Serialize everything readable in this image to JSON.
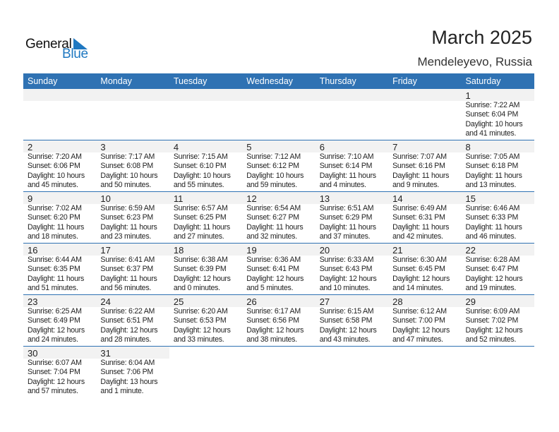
{
  "logo": {
    "text1": "General",
    "text2": "Blue"
  },
  "header": {
    "title": "March 2025",
    "location": "Mendeleyevo, Russia"
  },
  "colors": {
    "accent": "#2f72b3",
    "band": "#f2f2f2",
    "logo_blue": "#1f78c1"
  },
  "weekdays": [
    "Sunday",
    "Monday",
    "Tuesday",
    "Wednesday",
    "Thursday",
    "Friday",
    "Saturday"
  ],
  "weeks": [
    [
      null,
      null,
      null,
      null,
      null,
      null,
      {
        "day": "1",
        "sunrise": "Sunrise: 7:22 AM",
        "sunset": "Sunset: 6:04 PM",
        "daylight1": "Daylight: 10 hours",
        "daylight2": "and 41 minutes."
      }
    ],
    [
      {
        "day": "2",
        "sunrise": "Sunrise: 7:20 AM",
        "sunset": "Sunset: 6:06 PM",
        "daylight1": "Daylight: 10 hours",
        "daylight2": "and 45 minutes."
      },
      {
        "day": "3",
        "sunrise": "Sunrise: 7:17 AM",
        "sunset": "Sunset: 6:08 PM",
        "daylight1": "Daylight: 10 hours",
        "daylight2": "and 50 minutes."
      },
      {
        "day": "4",
        "sunrise": "Sunrise: 7:15 AM",
        "sunset": "Sunset: 6:10 PM",
        "daylight1": "Daylight: 10 hours",
        "daylight2": "and 55 minutes."
      },
      {
        "day": "5",
        "sunrise": "Sunrise: 7:12 AM",
        "sunset": "Sunset: 6:12 PM",
        "daylight1": "Daylight: 10 hours",
        "daylight2": "and 59 minutes."
      },
      {
        "day": "6",
        "sunrise": "Sunrise: 7:10 AM",
        "sunset": "Sunset: 6:14 PM",
        "daylight1": "Daylight: 11 hours",
        "daylight2": "and 4 minutes."
      },
      {
        "day": "7",
        "sunrise": "Sunrise: 7:07 AM",
        "sunset": "Sunset: 6:16 PM",
        "daylight1": "Daylight: 11 hours",
        "daylight2": "and 9 minutes."
      },
      {
        "day": "8",
        "sunrise": "Sunrise: 7:05 AM",
        "sunset": "Sunset: 6:18 PM",
        "daylight1": "Daylight: 11 hours",
        "daylight2": "and 13 minutes."
      }
    ],
    [
      {
        "day": "9",
        "sunrise": "Sunrise: 7:02 AM",
        "sunset": "Sunset: 6:20 PM",
        "daylight1": "Daylight: 11 hours",
        "daylight2": "and 18 minutes."
      },
      {
        "day": "10",
        "sunrise": "Sunrise: 6:59 AM",
        "sunset": "Sunset: 6:23 PM",
        "daylight1": "Daylight: 11 hours",
        "daylight2": "and 23 minutes."
      },
      {
        "day": "11",
        "sunrise": "Sunrise: 6:57 AM",
        "sunset": "Sunset: 6:25 PM",
        "daylight1": "Daylight: 11 hours",
        "daylight2": "and 27 minutes."
      },
      {
        "day": "12",
        "sunrise": "Sunrise: 6:54 AM",
        "sunset": "Sunset: 6:27 PM",
        "daylight1": "Daylight: 11 hours",
        "daylight2": "and 32 minutes."
      },
      {
        "day": "13",
        "sunrise": "Sunrise: 6:51 AM",
        "sunset": "Sunset: 6:29 PM",
        "daylight1": "Daylight: 11 hours",
        "daylight2": "and 37 minutes."
      },
      {
        "day": "14",
        "sunrise": "Sunrise: 6:49 AM",
        "sunset": "Sunset: 6:31 PM",
        "daylight1": "Daylight: 11 hours",
        "daylight2": "and 42 minutes."
      },
      {
        "day": "15",
        "sunrise": "Sunrise: 6:46 AM",
        "sunset": "Sunset: 6:33 PM",
        "daylight1": "Daylight: 11 hours",
        "daylight2": "and 46 minutes."
      }
    ],
    [
      {
        "day": "16",
        "sunrise": "Sunrise: 6:44 AM",
        "sunset": "Sunset: 6:35 PM",
        "daylight1": "Daylight: 11 hours",
        "daylight2": "and 51 minutes."
      },
      {
        "day": "17",
        "sunrise": "Sunrise: 6:41 AM",
        "sunset": "Sunset: 6:37 PM",
        "daylight1": "Daylight: 11 hours",
        "daylight2": "and 56 minutes."
      },
      {
        "day": "18",
        "sunrise": "Sunrise: 6:38 AM",
        "sunset": "Sunset: 6:39 PM",
        "daylight1": "Daylight: 12 hours",
        "daylight2": "and 0 minutes."
      },
      {
        "day": "19",
        "sunrise": "Sunrise: 6:36 AM",
        "sunset": "Sunset: 6:41 PM",
        "daylight1": "Daylight: 12 hours",
        "daylight2": "and 5 minutes."
      },
      {
        "day": "20",
        "sunrise": "Sunrise: 6:33 AM",
        "sunset": "Sunset: 6:43 PM",
        "daylight1": "Daylight: 12 hours",
        "daylight2": "and 10 minutes."
      },
      {
        "day": "21",
        "sunrise": "Sunrise: 6:30 AM",
        "sunset": "Sunset: 6:45 PM",
        "daylight1": "Daylight: 12 hours",
        "daylight2": "and 14 minutes."
      },
      {
        "day": "22",
        "sunrise": "Sunrise: 6:28 AM",
        "sunset": "Sunset: 6:47 PM",
        "daylight1": "Daylight: 12 hours",
        "daylight2": "and 19 minutes."
      }
    ],
    [
      {
        "day": "23",
        "sunrise": "Sunrise: 6:25 AM",
        "sunset": "Sunset: 6:49 PM",
        "daylight1": "Daylight: 12 hours",
        "daylight2": "and 24 minutes."
      },
      {
        "day": "24",
        "sunrise": "Sunrise: 6:22 AM",
        "sunset": "Sunset: 6:51 PM",
        "daylight1": "Daylight: 12 hours",
        "daylight2": "and 28 minutes."
      },
      {
        "day": "25",
        "sunrise": "Sunrise: 6:20 AM",
        "sunset": "Sunset: 6:53 PM",
        "daylight1": "Daylight: 12 hours",
        "daylight2": "and 33 minutes."
      },
      {
        "day": "26",
        "sunrise": "Sunrise: 6:17 AM",
        "sunset": "Sunset: 6:56 PM",
        "daylight1": "Daylight: 12 hours",
        "daylight2": "and 38 minutes."
      },
      {
        "day": "27",
        "sunrise": "Sunrise: 6:15 AM",
        "sunset": "Sunset: 6:58 PM",
        "daylight1": "Daylight: 12 hours",
        "daylight2": "and 43 minutes."
      },
      {
        "day": "28",
        "sunrise": "Sunrise: 6:12 AM",
        "sunset": "Sunset: 7:00 PM",
        "daylight1": "Daylight: 12 hours",
        "daylight2": "and 47 minutes."
      },
      {
        "day": "29",
        "sunrise": "Sunrise: 6:09 AM",
        "sunset": "Sunset: 7:02 PM",
        "daylight1": "Daylight: 12 hours",
        "daylight2": "and 52 minutes."
      }
    ],
    [
      {
        "day": "30",
        "sunrise": "Sunrise: 6:07 AM",
        "sunset": "Sunset: 7:04 PM",
        "daylight1": "Daylight: 12 hours",
        "daylight2": "and 57 minutes."
      },
      {
        "day": "31",
        "sunrise": "Sunrise: 6:04 AM",
        "sunset": "Sunset: 7:06 PM",
        "daylight1": "Daylight: 13 hours",
        "daylight2": "and 1 minute."
      },
      null,
      null,
      null,
      null,
      null
    ]
  ]
}
